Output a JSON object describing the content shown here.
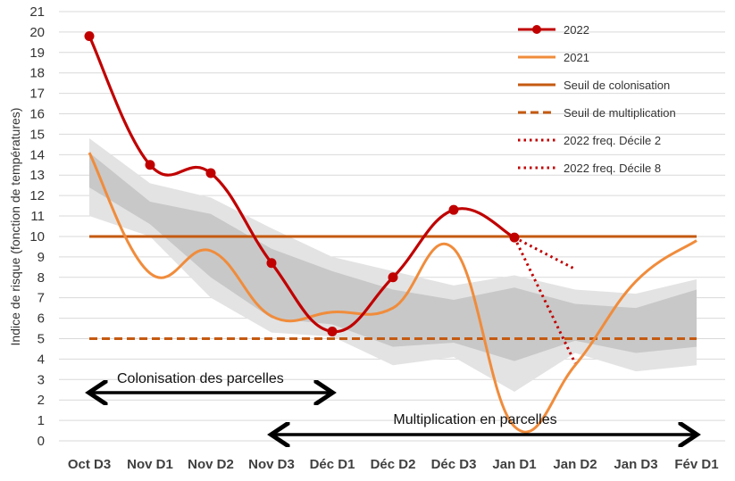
{
  "chart_data": {
    "type": "line",
    "ylabel": "Indice de risque (fonction de températures)",
    "ylim": [
      0,
      21
    ],
    "yticks": [
      0,
      1,
      2,
      3,
      4,
      5,
      6,
      7,
      8,
      9,
      10,
      11,
      12,
      13,
      14,
      15,
      16,
      17,
      18,
      19,
      20,
      21
    ],
    "categories": [
      "Oct D3",
      "Nov D1",
      "Nov D2",
      "Nov D3",
      "Déc D1",
      "Déc D2",
      "Déc D3",
      "Jan D1",
      "Jan D2",
      "Jan D3",
      "Fév D1"
    ],
    "grid": "horizontal",
    "legend_position": "top-right",
    "series": [
      {
        "name": "2022",
        "color": "#c00000",
        "style": "solid-marker",
        "values": [
          19.8,
          13.5,
          13.1,
          8.7,
          5.35,
          8.0,
          11.3,
          9.95,
          null,
          null,
          null
        ]
      },
      {
        "name": "2021",
        "color": "#f08c3c",
        "style": "solid",
        "values": [
          14.1,
          8.2,
          9.3,
          6.1,
          6.3,
          6.5,
          9.4,
          0.7,
          3.7,
          7.8,
          9.8
        ]
      },
      {
        "name": "Seuil de colonisation",
        "color": "#c55a11",
        "style": "solid",
        "values": [
          10,
          10,
          10,
          10,
          10,
          10,
          10,
          10,
          10,
          10,
          10
        ]
      },
      {
        "name": "Seuil de multiplication",
        "color": "#c55a11",
        "style": "dashed",
        "values": [
          5,
          5,
          5,
          5,
          5,
          5,
          5,
          5,
          5,
          5,
          5
        ]
      },
      {
        "name": "2022 freq. Décile 2",
        "color": "#c00000",
        "style": "dotted",
        "values": [
          null,
          null,
          null,
          null,
          null,
          null,
          null,
          9.95,
          8.4,
          null,
          null
        ]
      },
      {
        "name": "2022 freq. Décile 8",
        "color": "#c00000",
        "style": "dotted",
        "values": [
          null,
          null,
          null,
          null,
          null,
          null,
          null,
          9.95,
          3.8,
          null,
          null
        ]
      }
    ],
    "bands": {
      "outer": {
        "upper": [
          14.8,
          12.6,
          11.9,
          10.4,
          9.0,
          8.3,
          7.6,
          8.1,
          7.4,
          7.2,
          7.9
        ],
        "lower": [
          11.0,
          10.0,
          7.0,
          5.3,
          5.1,
          3.7,
          4.1,
          2.4,
          4.3,
          3.4,
          3.7
        ]
      },
      "inner": {
        "upper": [
          14.1,
          11.7,
          11.1,
          9.4,
          8.3,
          7.4,
          6.9,
          7.5,
          6.7,
          6.5,
          7.4
        ],
        "lower": [
          12.4,
          10.6,
          8.0,
          6.0,
          5.7,
          4.6,
          4.8,
          3.9,
          4.9,
          4.3,
          4.6
        ]
      }
    },
    "annotations": [
      {
        "text": "Colonisation des parcelles",
        "from": "Oct D3",
        "to": "Déc D1"
      },
      {
        "text": "Multiplication en parcelles",
        "from": "Nov D3",
        "to": "Fév D1"
      }
    ]
  }
}
